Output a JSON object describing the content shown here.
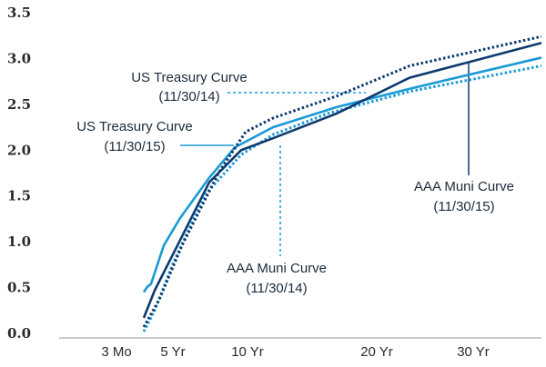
{
  "chart_data": {
    "type": "line",
    "ylim": [
      0,
      3.5
    ],
    "yticks": [
      {
        "value": 0,
        "label": "0.0"
      },
      0.5,
      {
        "value": 1,
        "label": "1.0"
      },
      1.5,
      {
        "value": 2,
        "label": "2.0"
      },
      2.5,
      {
        "value": 3,
        "label": "3.0"
      },
      3.5
    ],
    "xlim": [
      0,
      53
    ],
    "xticks": [
      {
        "value": 6.3,
        "label": "3 Mo"
      },
      {
        "value": 12.5,
        "label": "5 Yr"
      },
      {
        "value": 20.7,
        "label": "10 Yr"
      },
      {
        "value": 34.9,
        "label": "20 Yr"
      },
      {
        "value": 45.5,
        "label": "30 Yr"
      }
    ],
    "series": [
      {
        "color": "#1a9ad6",
        "dashed": false,
        "x": [
          9.3,
          9.7,
          10.1,
          11.5,
          13.3,
          16.5,
          19.3,
          23.5,
          30.5,
          38.5,
          53
        ],
        "values": [
          0.44,
          0.5,
          0.53,
          0.95,
          1.25,
          1.69,
          2.02,
          2.24,
          2.46,
          2.66,
          3.0
        ]
      },
      {
        "color": "#1a9ad6",
        "dashed": true,
        "x": [
          9.3,
          10.5,
          12.5,
          16,
          20,
          23.5,
          29.5,
          38.5,
          53
        ],
        "values": [
          0.01,
          0.24,
          0.75,
          1.5,
          1.94,
          2.16,
          2.39,
          2.63,
          2.91
        ]
      },
      {
        "color": "#0d3a6e",
        "dashed": false,
        "x": [
          9.3,
          10.5,
          13,
          16.5,
          20,
          23.5,
          30.5,
          38.5,
          53
        ],
        "values": [
          0.16,
          0.46,
          0.95,
          1.64,
          1.99,
          2.12,
          2.39,
          2.78,
          3.16
        ]
      },
      {
        "color": "#0d3a6e",
        "dashed": true,
        "x": [
          9.3,
          11,
          13.5,
          17.5,
          20.5,
          23.5,
          30.5,
          38.5,
          53
        ],
        "values": [
          0.06,
          0.36,
          0.95,
          1.74,
          2.19,
          2.34,
          2.58,
          2.91,
          3.23
        ]
      }
    ],
    "annotations": [
      {
        "lines": [
          "US Treasury Curve",
          "(11/30/14)"
        ]
      },
      {
        "lines": [
          "US Treasury Curve",
          "(11/30/15)"
        ]
      },
      {
        "lines": [
          "AAA Muni Curve",
          "(11/30/14)"
        ]
      },
      {
        "lines": [
          "AAA Muni Curve",
          "(11/30/15)"
        ]
      }
    ]
  }
}
